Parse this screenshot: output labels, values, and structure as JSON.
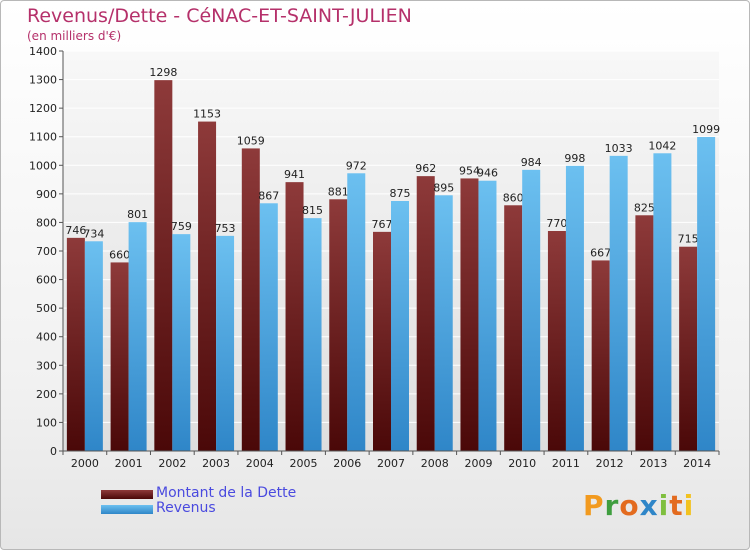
{
  "header": {
    "title": "Revenus/Dette - CéNAC-ET-SAINT-JULIEN",
    "subtitle": "(en milliers d'€)"
  },
  "logo": {
    "letters": [
      "P",
      "r",
      "o",
      "x",
      "i",
      "t",
      "i"
    ],
    "colors": [
      "#f29a1f",
      "#3f9e3f",
      "#e36b1f",
      "#2f86c8",
      "#7fbf3f",
      "#e36b1f",
      "#f2c21f"
    ]
  },
  "chart_data": {
    "type": "bar",
    "title": "Revenus/Dette - CéNAC-ET-SAINT-JULIEN",
    "subtitle": "(en milliers d'€)",
    "categories": [
      "2000",
      "2001",
      "2002",
      "2003",
      "2004",
      "2005",
      "2006",
      "2007",
      "2008",
      "2009",
      "2010",
      "2011",
      "2012",
      "2013",
      "2014"
    ],
    "series": [
      {
        "name": "Montant de la Dette",
        "color": "#7a2424",
        "values": [
          746,
          660,
          1298,
          1153,
          1059,
          941,
          881,
          767,
          962,
          954,
          860,
          770,
          667,
          825,
          715
        ]
      },
      {
        "name": "Revenus",
        "color": "#4aa3e3",
        "values": [
          734,
          801,
          759,
          753,
          867,
          815,
          972,
          875,
          895,
          946,
          984,
          998,
          1033,
          1042,
          1099
        ]
      }
    ],
    "yticks": [
      0,
      100,
      200,
      300,
      400,
      500,
      600,
      700,
      800,
      900,
      1000,
      1100,
      1200,
      1300,
      1400
    ],
    "ylim": [
      0,
      1400
    ],
    "grid": true,
    "legend_position": "bottom-left"
  }
}
